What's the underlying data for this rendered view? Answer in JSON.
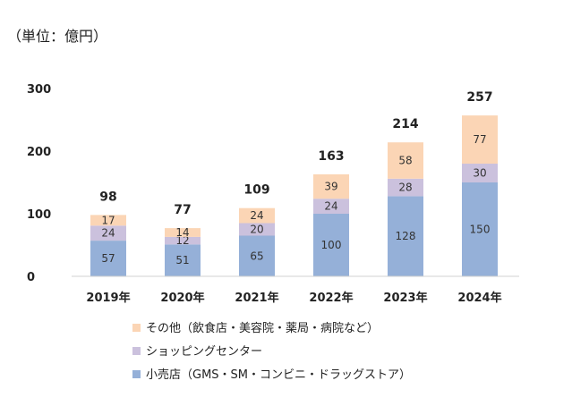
{
  "chart_data": {
    "type": "bar",
    "stacked": true,
    "unit_label": "（単位：億円）",
    "categories": [
      "2019年",
      "2020年",
      "2021年",
      "2022年",
      "2023年",
      "2024年"
    ],
    "series": [
      {
        "name": "小売店（GMS・SM・コンビニ・ドラッグストア）",
        "color": "#95b0d8",
        "values": [
          57,
          51,
          65,
          100,
          128,
          150
        ]
      },
      {
        "name": "ショッピングセンター",
        "color": "#cbc1dd",
        "values": [
          24,
          12,
          20,
          24,
          28,
          30
        ]
      },
      {
        "name": "その他（飲食店・美容院・薬局・病院など）",
        "color": "#fbd5b5",
        "values": [
          17,
          14,
          24,
          39,
          58,
          77
        ]
      }
    ],
    "totals": [
      98,
      77,
      109,
      163,
      214,
      257
    ],
    "y_ticks": [
      0,
      100,
      200,
      300
    ],
    "ylim": [
      0,
      300
    ],
    "legend_position": "bottom-left",
    "legend_order": [
      2,
      1,
      0
    ],
    "grid": false
  }
}
